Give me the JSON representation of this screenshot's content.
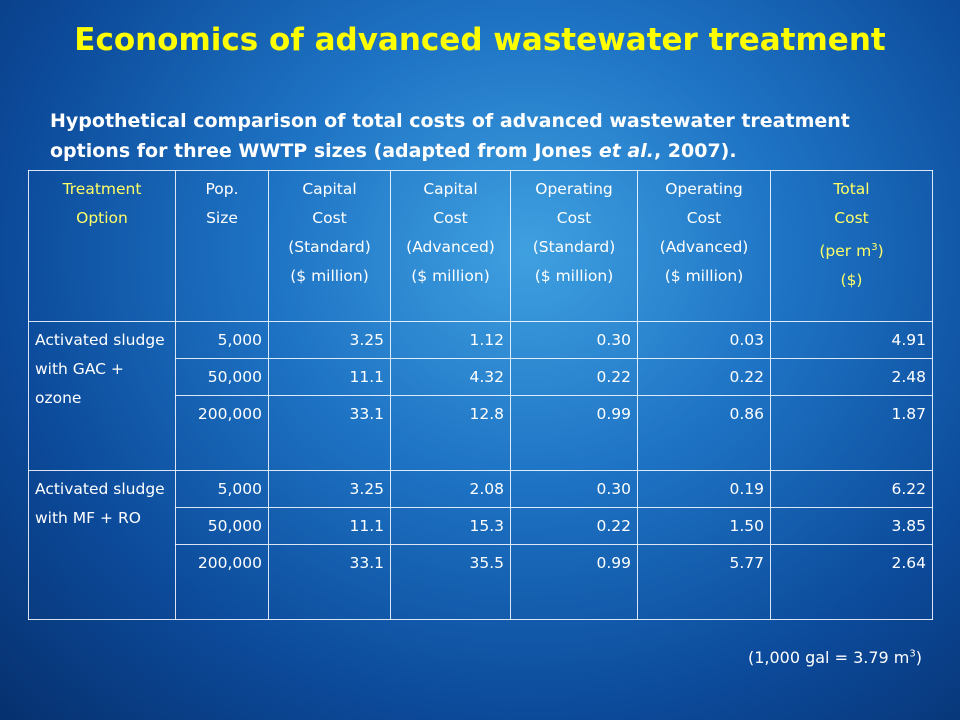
{
  "title": "Economics of advanced wastewater treatment",
  "subtitle": {
    "before": "Hypothetical comparison of total costs of advanced wastewater treatment options for three WWTP sizes (adapted from Jones ",
    "italic": "et al.",
    "after": ", 2007)."
  },
  "table": {
    "header": [
      {
        "lines": [
          "Treatment",
          "Option"
        ],
        "highlight": true
      },
      {
        "lines": [
          "Pop.",
          "Size"
        ],
        "highlight": false
      },
      {
        "lines": [
          "Capital",
          "Cost",
          "(Standard)",
          "($ million)"
        ],
        "highlight": false
      },
      {
        "lines": [
          "Capital",
          "Cost",
          "(Advanced)",
          "($ million)"
        ],
        "highlight": false
      },
      {
        "lines": [
          "Operating",
          "Cost",
          "(Standard)",
          "($ million)"
        ],
        "highlight": false
      },
      {
        "lines": [
          "Operating",
          "Cost",
          "(Advanced)",
          "($ million)"
        ],
        "highlight": false
      },
      {
        "lines": [
          "Total",
          "Cost",
          {
            "text": "(per m",
            "sup": "3",
            "tail": ")"
          },
          "($)"
        ],
        "highlight": true
      }
    ],
    "groups": [
      {
        "option": "Activated sludge with GAC + ozone",
        "rows": [
          [
            "5,000",
            "3.25",
            "1.12",
            "0.30",
            "0.03",
            "4.91"
          ],
          [
            "50,000",
            "11.1",
            "4.32",
            "0.22",
            "0.22",
            "2.48"
          ],
          [
            "200,000",
            "33.1",
            "12.8",
            "0.99",
            "0.86",
            "1.87"
          ]
        ]
      },
      {
        "option": "Activated sludge with MF + RO",
        "rows": [
          [
            "5,000",
            "3.25",
            "2.08",
            "0.30",
            "0.19",
            "6.22"
          ],
          [
            "50,000",
            "11.1",
            "15.3",
            "0.22",
            "1.50",
            "3.85"
          ],
          [
            "200,000",
            "33.1",
            "35.5",
            "0.99",
            "5.77",
            "2.64"
          ]
        ]
      }
    ]
  },
  "footnote": {
    "text": "(1,000 gal = 3.79 m",
    "sup": "3",
    "tail": ")"
  }
}
